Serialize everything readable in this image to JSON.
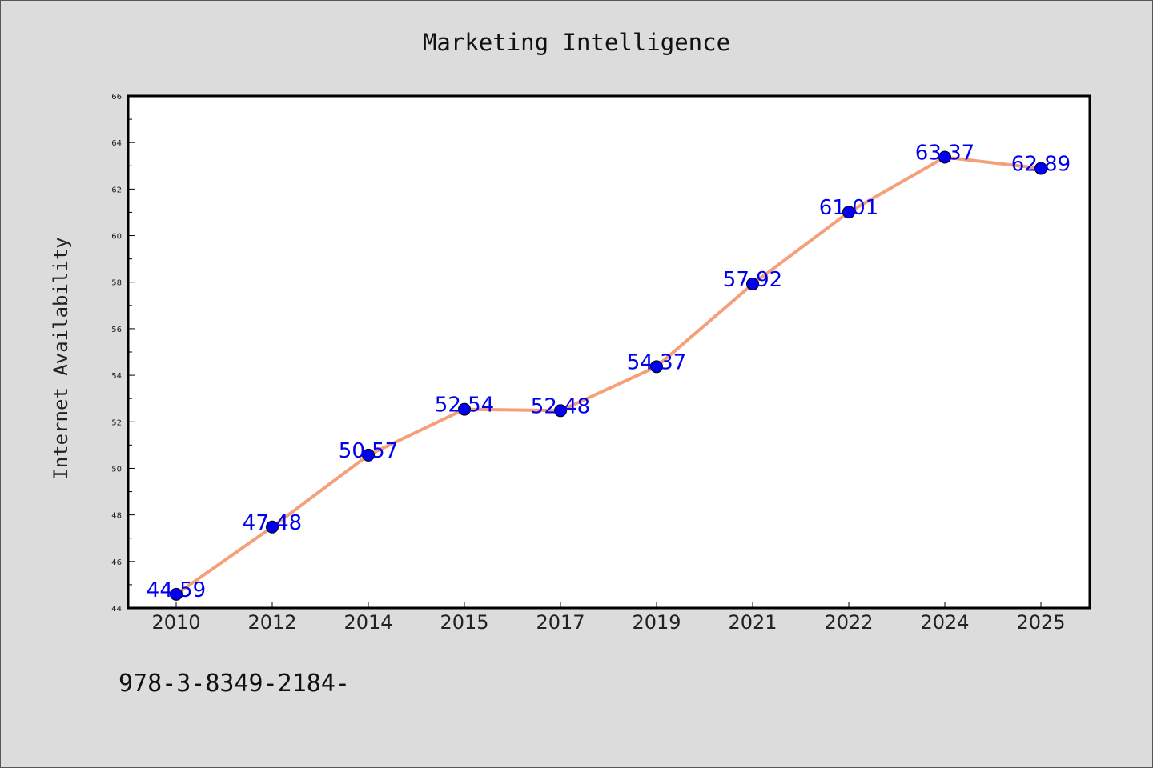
{
  "chart_data": {
    "type": "line",
    "title": "Marketing Intelligence",
    "xlabel": "",
    "ylabel": "Internet Availability",
    "categories": [
      "2010",
      "2012",
      "2014",
      "2015",
      "2017",
      "2019",
      "2021",
      "2022",
      "2024",
      "2025"
    ],
    "series": [
      {
        "values": [
          44.59,
          47.48,
          50.57,
          52.54,
          52.48,
          54.37,
          57.92,
          61.01,
          63.37,
          62.89
        ],
        "data_labels": [
          "44.59",
          "47.48",
          "50.57",
          "52.54",
          "52.48",
          "54.37",
          "57.92",
          "61.01",
          "63.37",
          "62.89"
        ],
        "line_color": "#f4a07a",
        "marker_color": "#0000ee",
        "label_color": "#0000ee"
      }
    ],
    "ylim": [
      44,
      66
    ],
    "yticks": [
      "44",
      "46",
      "48",
      "50",
      "52",
      "54",
      "56",
      "58",
      "60",
      "62",
      "64",
      "66"
    ],
    "grid": false,
    "legend": "none"
  },
  "footer": {
    "isbn": "978-3-8349-2184-"
  },
  "colors": {
    "background": "#dcdcdc",
    "plot_background": "#ffffff"
  }
}
